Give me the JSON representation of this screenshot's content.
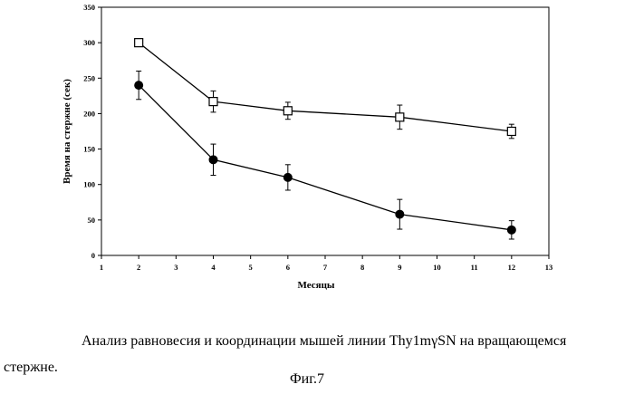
{
  "chart_data": {
    "type": "line",
    "title": "",
    "xlabel": "Месяцы",
    "ylabel": "Время на стержне (сек)",
    "xlim": [
      1,
      13
    ],
    "ylim": [
      0,
      350
    ],
    "xticks": [
      1,
      2,
      3,
      4,
      5,
      6,
      7,
      8,
      9,
      10,
      11,
      12,
      13
    ],
    "yticks": [
      0,
      50,
      100,
      150,
      200,
      250,
      300,
      350
    ],
    "grid": false,
    "legend": "none",
    "series": [
      {
        "marker": "open-square",
        "x": [
          2,
          4,
          6,
          9,
          12
        ],
        "y": [
          300,
          217,
          204,
          195,
          175
        ],
        "error": [
          0,
          15,
          12,
          17,
          10
        ]
      },
      {
        "marker": "filled-circle",
        "x": [
          2,
          4,
          6,
          9,
          12
        ],
        "y": [
          240,
          135,
          110,
          58,
          36
        ],
        "error": [
          20,
          22,
          18,
          21,
          13
        ]
      }
    ]
  },
  "caption": {
    "line1": "Анализ равновесия и координации мышей линии Thy1mγSN на вращающемся",
    "line2": "стержне.",
    "figure": "Фиг.7"
  },
  "colors": {
    "line": "#000000",
    "background": "#ffffff"
  }
}
